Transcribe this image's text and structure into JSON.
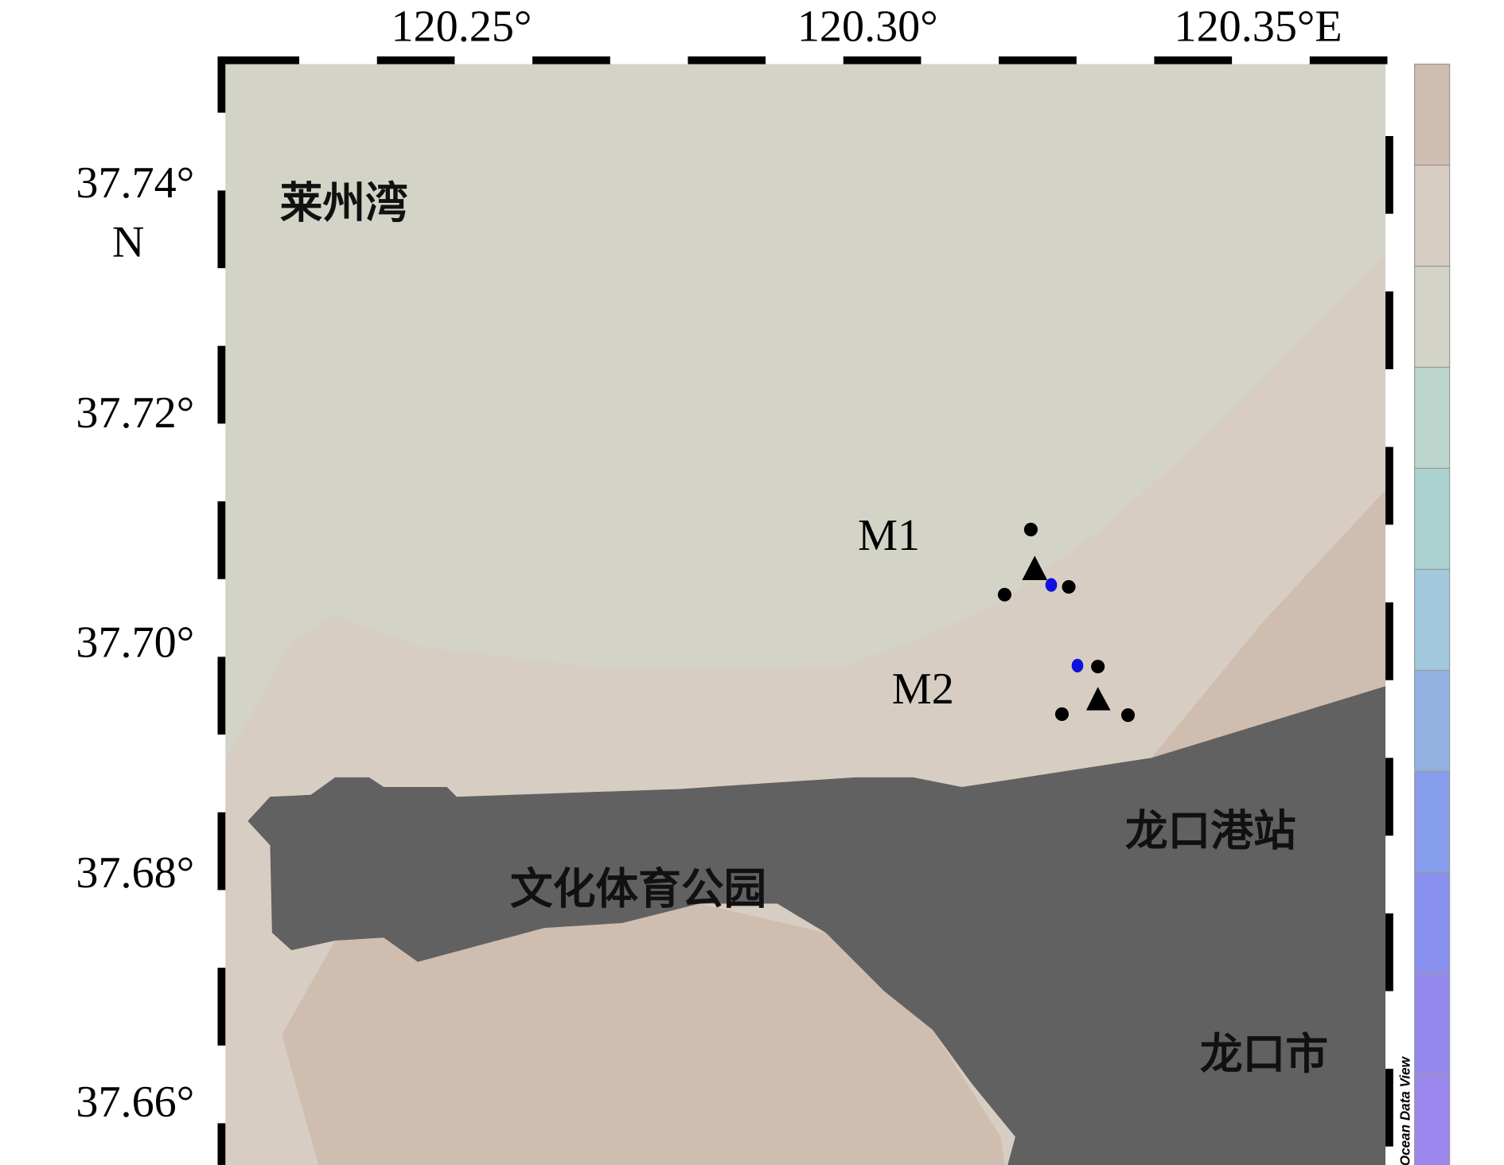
{
  "map": {
    "x_ticks": [
      "120.25°",
      "120.30°",
      "120.35°E"
    ],
    "y_ticks": [
      "37.74°",
      "37.72°",
      "37.70°",
      "37.68°",
      "37.66°"
    ],
    "y_unit": "N",
    "places": [
      "莱州湾",
      "文化体育公园",
      "龙口港站",
      "龙口市"
    ],
    "stations": [
      "M1",
      "M2"
    ],
    "credit": "Ocean Data View"
  }
}
